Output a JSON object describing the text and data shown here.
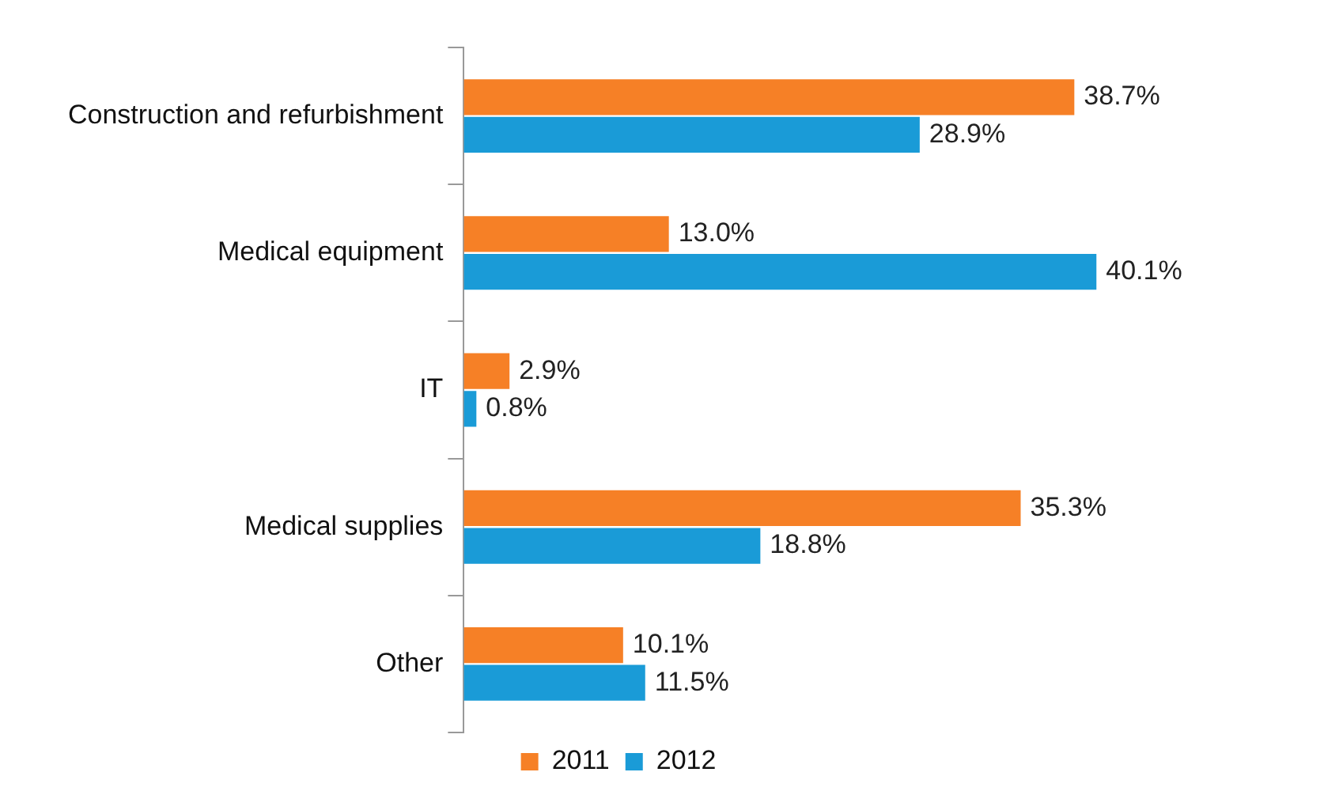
{
  "chart_data": {
    "type": "bar",
    "orientation": "horizontal",
    "categories": [
      "Construction and refurbishment",
      "Medical equipment",
      "IT",
      "Medical supplies",
      "Other"
    ],
    "series": [
      {
        "name": "2011",
        "color": "#f68026",
        "values": [
          38.7,
          13.0,
          2.9,
          35.3,
          10.1
        ],
        "value_labels": [
          "38.7%",
          "13.0%",
          "2.9%",
          "35.3%",
          "10.1%"
        ]
      },
      {
        "name": "2012",
        "color": "#1a9bd7",
        "values": [
          28.9,
          40.1,
          0.8,
          18.8,
          11.5
        ],
        "value_labels": [
          "28.9%",
          "40.1%",
          "0.8%",
          "18.8%",
          "11.5%"
        ]
      }
    ],
    "tick_labels": "y",
    "legend": "bottom"
  }
}
